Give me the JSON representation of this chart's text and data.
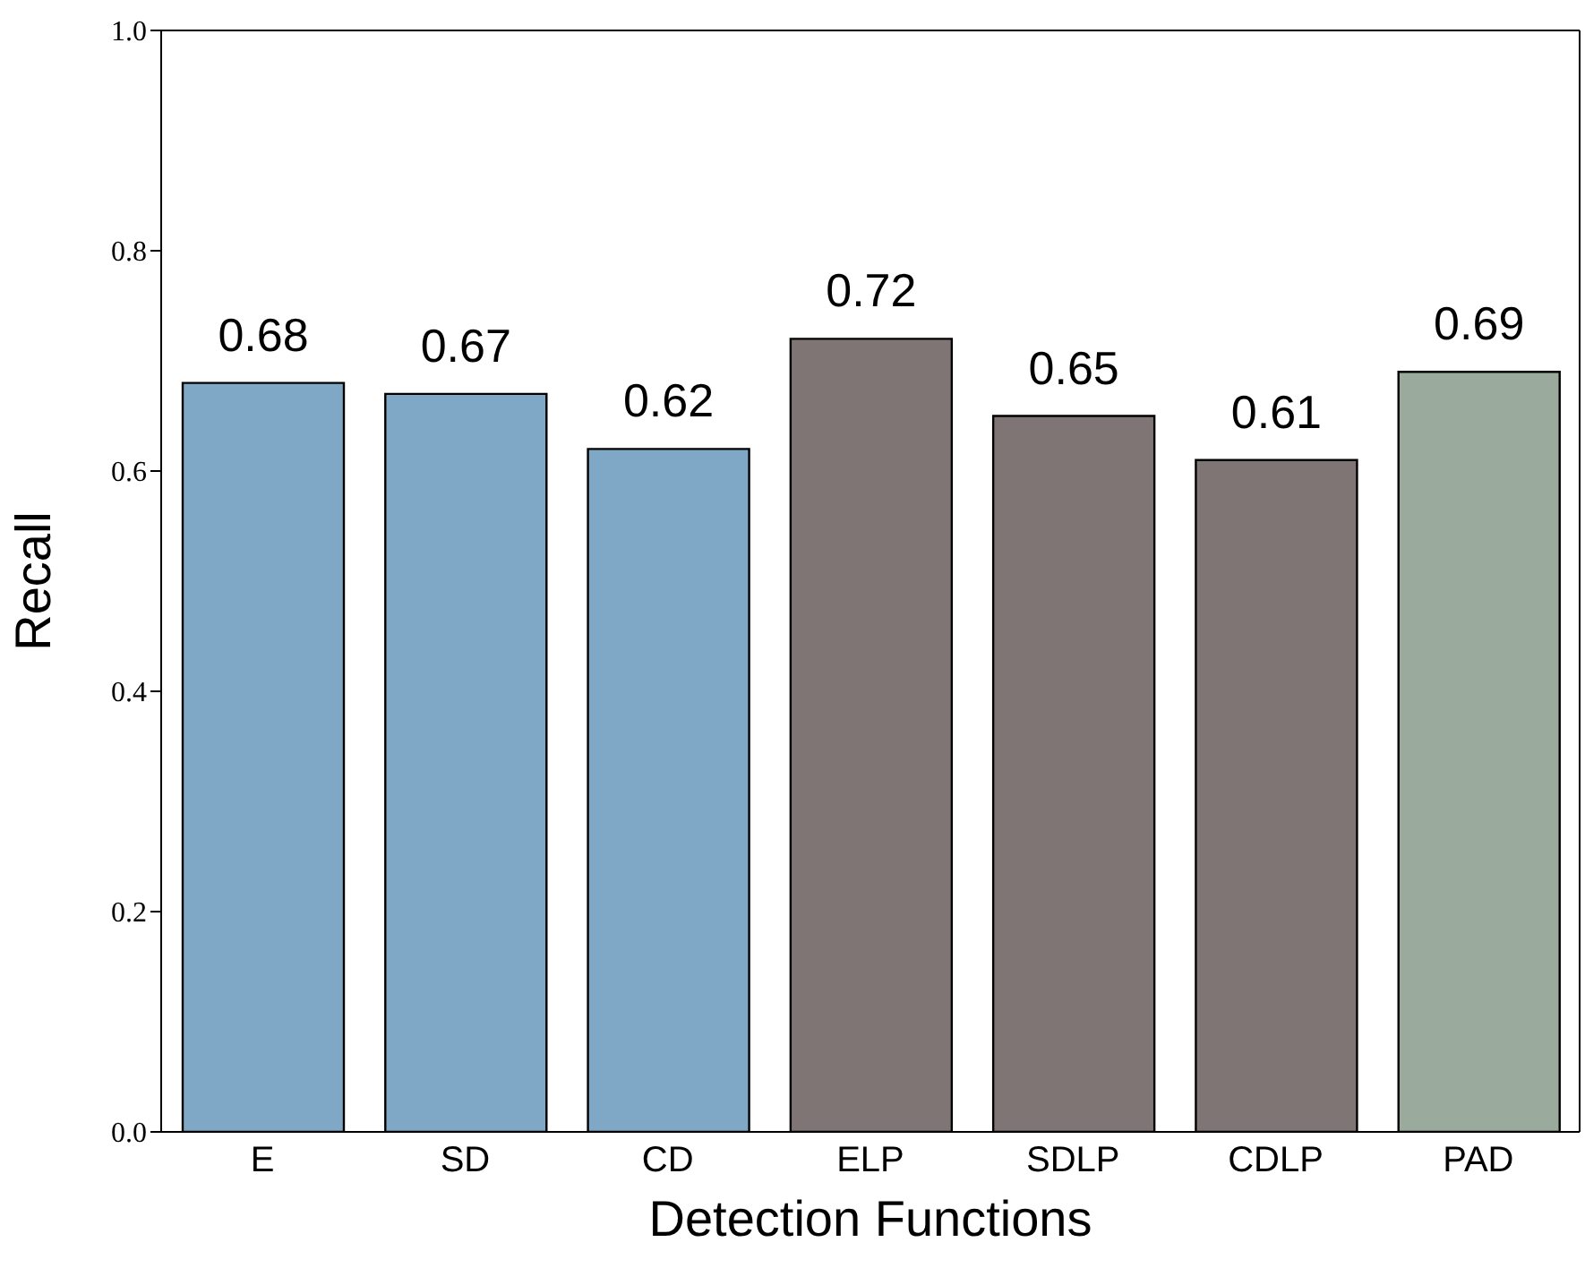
{
  "chart_data": {
    "type": "bar",
    "xlabel": "Detection Functions",
    "ylabel": "Recall",
    "categories": [
      "E",
      "SD",
      "CD",
      "ELP",
      "SDLP",
      "CDLP",
      "PAD"
    ],
    "values": [
      0.68,
      0.67,
      0.62,
      0.72,
      0.65,
      0.61,
      0.69
    ],
    "colors": [
      "#7fa8c6",
      "#7fa8c6",
      "#7fa8c6",
      "#7f7575",
      "#7f7575",
      "#7f7575",
      "#9aaa9d"
    ],
    "ylim": [
      0,
      1
    ],
    "yticks": [
      {
        "value": 0,
        "label": "0.0"
      },
      0.2,
      0.4,
      0.6,
      0.8,
      {
        "value": 1,
        "label": "1.0"
      }
    ],
    "data_labels": true,
    "grid": false,
    "legend": false
  }
}
